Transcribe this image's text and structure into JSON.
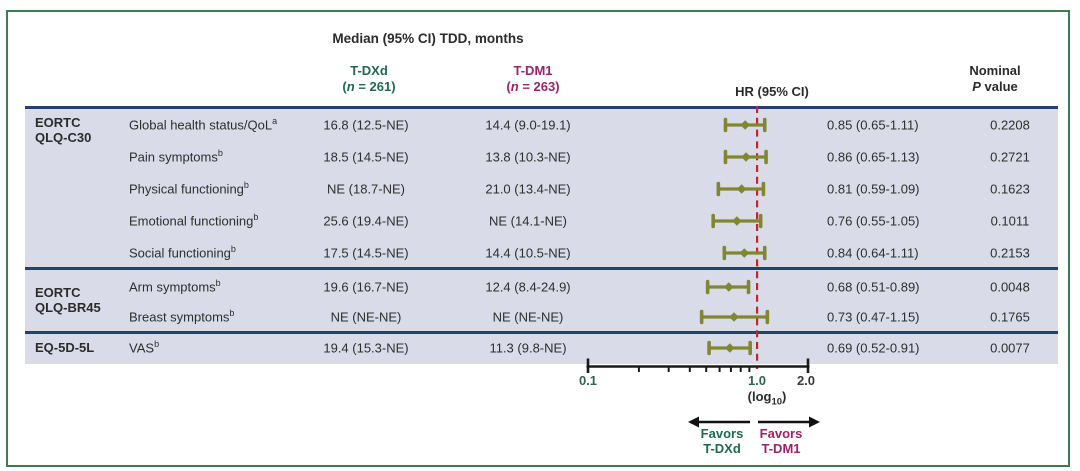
{
  "header": {
    "title": "Median (95% CI) TDD, months",
    "col_tdxd": {
      "name": "T-DXd",
      "paren": "(",
      "n": "n",
      "rest": " = 261)"
    },
    "col_tdm1": {
      "name": "T-DM1",
      "paren": "(",
      "n": "n",
      "rest": " = 263)"
    },
    "col_hr": "HR (95% CI)",
    "col_p": {
      "line1": "Nominal",
      "p": "P",
      "rest": " value"
    }
  },
  "chart_data": {
    "type": "forest",
    "x_axis": {
      "scale": "log10",
      "range": [
        0.1,
        2.0
      ],
      "tick_labels": [
        "0.1",
        "1.0",
        "2.0"
      ],
      "minor_ticks": [
        0.2,
        0.3,
        0.4,
        0.5,
        0.6,
        0.7,
        0.8,
        0.9
      ],
      "reference_line": 1.0,
      "scale_label": {
        "prefix": "(log",
        "sub": "10",
        "suffix": ")"
      }
    },
    "reference_line_color": "#c0262c",
    "marker_color": "#818730",
    "groups": [
      {
        "name_lines": [
          "EORTC",
          "QLQ-C30"
        ],
        "rows": [
          {
            "label": "Global health status/QoL",
            "sup": "a",
            "tdxd": "16.8 (12.5-NE)",
            "tdm1": "14.4 (9.0-19.1)",
            "hr": 0.85,
            "ci_low": 0.65,
            "ci_high": 1.11,
            "hr_text": "0.85 (0.65-1.11)",
            "p": "0.2208"
          },
          {
            "label": "Pain symptoms",
            "sup": "b",
            "tdxd": "18.5 (14.5-NE)",
            "tdm1": "13.8 (10.3-NE)",
            "hr": 0.86,
            "ci_low": 0.65,
            "ci_high": 1.13,
            "hr_text": "0.86 (0.65-1.13)",
            "p": "0.2721"
          },
          {
            "label": "Physical functioning",
            "sup": "b",
            "tdxd": "NE (18.7-NE)",
            "tdm1": "21.0 (13.4-NE)",
            "hr": 0.81,
            "ci_low": 0.59,
            "ci_high": 1.09,
            "hr_text": "0.81 (0.59-1.09)",
            "p": "0.1623"
          },
          {
            "label": "Emotional functioning",
            "sup": "b",
            "tdxd": "25.6 (19.4-NE)",
            "tdm1": "NE (14.1-NE)",
            "hr": 0.76,
            "ci_low": 0.55,
            "ci_high": 1.05,
            "hr_text": "0.76 (0.55-1.05)",
            "p": "0.1011"
          },
          {
            "label": "Social functioning",
            "sup": "b",
            "tdxd": "17.5 (14.5-NE)",
            "tdm1": "14.4 (10.5-NE)",
            "hr": 0.84,
            "ci_low": 0.64,
            "ci_high": 1.11,
            "hr_text": "0.84 (0.64-1.11)",
            "p": "0.2153"
          }
        ]
      },
      {
        "name_lines": [
          "EORTC",
          "QLQ-BR45"
        ],
        "rows": [
          {
            "label": "Arm symptoms",
            "sup": "b",
            "tdxd": "19.6 (16.7-NE)",
            "tdm1": "12.4 (8.4-24.9)",
            "hr": 0.68,
            "ci_low": 0.51,
            "ci_high": 0.89,
            "hr_text": "0.68 (0.51-0.89)",
            "p": "0.0048"
          },
          {
            "label": "Breast symptoms",
            "sup": "b",
            "tdxd": "NE (NE-NE)",
            "tdm1": "NE (NE-NE)",
            "hr": 0.73,
            "ci_low": 0.47,
            "ci_high": 1.15,
            "hr_text": "0.73 (0.47-1.15)",
            "p": "0.1765"
          }
        ]
      },
      {
        "name_lines": [
          "EQ-5D-5L"
        ],
        "rows": [
          {
            "label": "VAS",
            "sup": "b",
            "tdxd": "19.4 (15.3-NE)",
            "tdm1": "11.3 (9.8-NE)",
            "hr": 0.69,
            "ci_low": 0.52,
            "ci_high": 0.91,
            "hr_text": "0.69 (0.52-0.91)",
            "p": "0.0077"
          }
        ]
      }
    ],
    "favors_left": {
      "line1": "Favors",
      "line2": "T-DXd"
    },
    "favors_right": {
      "line1": "Favors",
      "line2": "T-DM1"
    }
  },
  "colors": {
    "tdxd_green": "#1d6a51",
    "tdm1_magenta": "#a02168",
    "navy_rule": "#24416f",
    "panel_bg": "#d9dce8",
    "frame_green": "#3c7c52",
    "marker_olive": "#818730",
    "reference_red": "#c0262c"
  }
}
